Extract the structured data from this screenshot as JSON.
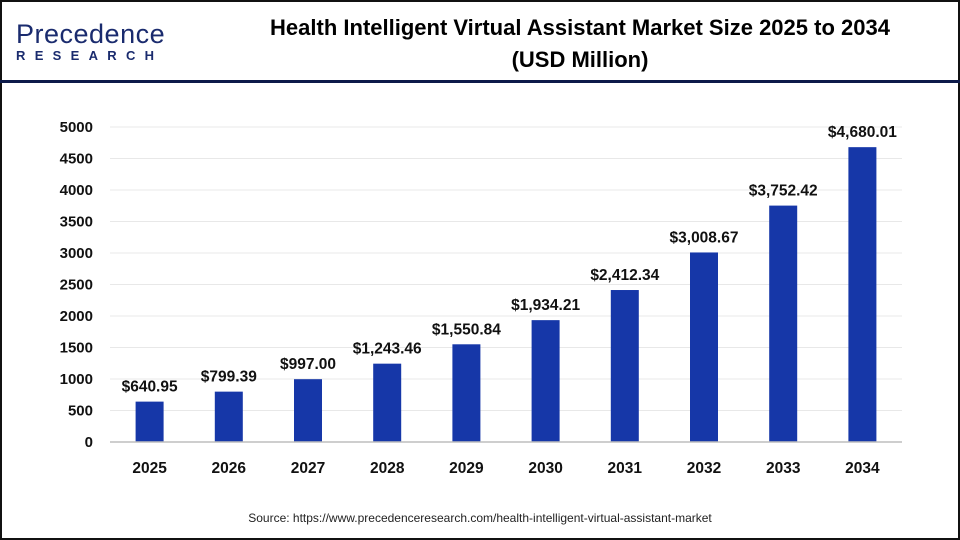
{
  "logo": {
    "line1": "Precedence",
    "line2": "RESEARCH"
  },
  "title": "Health Intelligent Virtual Assistant Market Size 2025 to 2034",
  "subtitle": "(USD Million)",
  "source": "Source: https://www.precedenceresearch.com/health-intelligent-virtual-assistant-market",
  "colors": {
    "bar": "#1637a8",
    "grid": "#e8e8e8",
    "axis": "#bdbdbd",
    "header_line": "#0d1a4a"
  },
  "chart_data": {
    "type": "bar",
    "title": "Health Intelligent Virtual Assistant Market Size 2025 to 2034 (USD Million)",
    "xlabel": "",
    "ylabel": "",
    "categories": [
      "2025",
      "2026",
      "2027",
      "2028",
      "2029",
      "2030",
      "2031",
      "2032",
      "2033",
      "2034"
    ],
    "values": [
      640.95,
      799.39,
      997.0,
      1243.46,
      1550.84,
      1934.21,
      2412.34,
      3008.67,
      3752.42,
      4680.01
    ],
    "data_labels": [
      "$640.95",
      "$799.39",
      "$997.00",
      "$1,243.46",
      "$1,550.84",
      "$1,934.21",
      "$2,412.34",
      "$3,008.67",
      "$3,752.42",
      "$4,680.01"
    ],
    "ylim": [
      0,
      5000
    ],
    "yticks": [
      0,
      500,
      1000,
      1500,
      2000,
      2500,
      3000,
      3500,
      4000,
      4500,
      5000
    ],
    "grid": true,
    "legend": "none"
  }
}
